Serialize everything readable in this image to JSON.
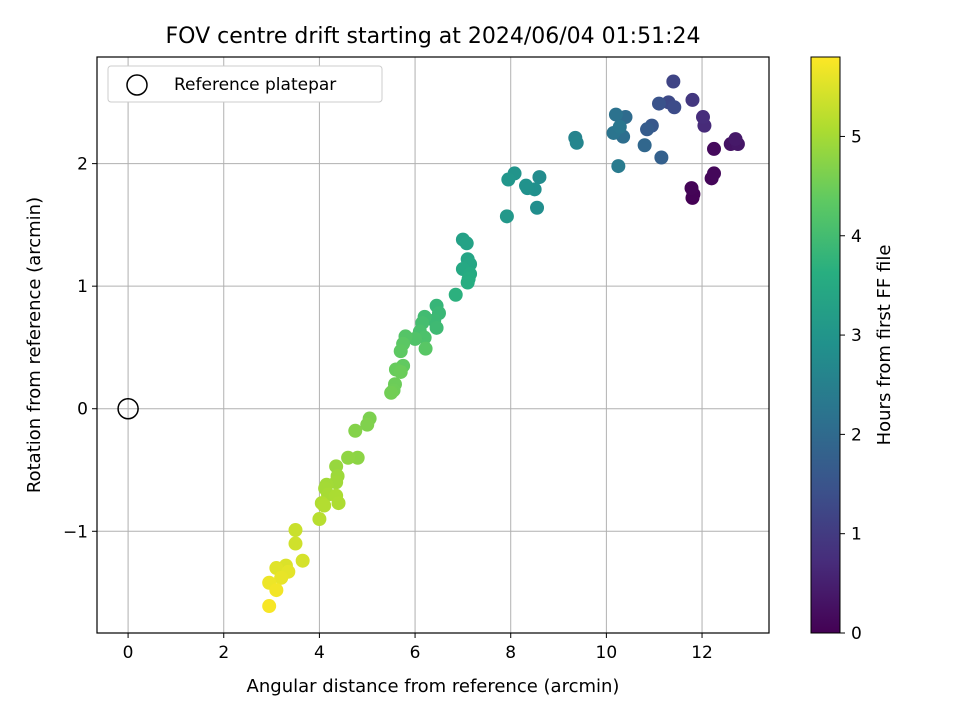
{
  "chart_data": {
    "type": "scatter",
    "title": "FOV centre drift starting at 2024/06/04 01:51:24",
    "xlabel": "Angular distance from reference (arcmin)",
    "ylabel": "Rotation from reference (arcmin)",
    "xlim": [
      -0.65,
      13.4
    ],
    "ylim": [
      -1.83,
      2.87
    ],
    "xticks": [
      0,
      2,
      4,
      6,
      8,
      10,
      12
    ],
    "yticks": [
      -1,
      0,
      1,
      2
    ],
    "xtick_labels": [
      "0",
      "2",
      "4",
      "6",
      "8",
      "10",
      "12"
    ],
    "ytick_labels": [
      "−1",
      "0",
      "1",
      "2"
    ],
    "grid": true,
    "legend": {
      "location": "upper left",
      "entries": [
        {
          "label": "Reference platepar",
          "marker": "open-circle"
        }
      ]
    },
    "colorbar": {
      "label": "Hours from first FF file",
      "range": [
        0,
        5.8
      ],
      "ticks": [
        0,
        1,
        2,
        3,
        4,
        5
      ],
      "tick_labels": [
        "0",
        "1",
        "2",
        "3",
        "4",
        "5"
      ],
      "colormap": "viridis"
    },
    "reference_point": {
      "x": 0,
      "y": 0
    },
    "points": [
      {
        "x": 11.8,
        "y": 1.72,
        "c": 0.0
      },
      {
        "x": 11.82,
        "y": 1.75,
        "c": 0.03
      },
      {
        "x": 11.78,
        "y": 1.8,
        "c": 0.06
      },
      {
        "x": 12.2,
        "y": 1.88,
        "c": 0.09
      },
      {
        "x": 12.25,
        "y": 1.92,
        "c": 0.12
      },
      {
        "x": 12.25,
        "y": 2.12,
        "c": 0.15
      },
      {
        "x": 12.6,
        "y": 2.16,
        "c": 0.3
      },
      {
        "x": 12.75,
        "y": 2.16,
        "c": 0.35
      },
      {
        "x": 12.7,
        "y": 2.2,
        "c": 0.4
      },
      {
        "x": 12.05,
        "y": 2.31,
        "c": 0.7
      },
      {
        "x": 12.02,
        "y": 2.38,
        "c": 0.75
      },
      {
        "x": 11.8,
        "y": 2.52,
        "c": 0.95
      },
      {
        "x": 11.4,
        "y": 2.67,
        "c": 1.2
      },
      {
        "x": 11.3,
        "y": 2.5,
        "c": 1.3
      },
      {
        "x": 11.42,
        "y": 2.46,
        "c": 1.35
      },
      {
        "x": 11.1,
        "y": 2.49,
        "c": 1.5
      },
      {
        "x": 10.95,
        "y": 2.31,
        "c": 1.6
      },
      {
        "x": 10.85,
        "y": 2.28,
        "c": 1.7
      },
      {
        "x": 11.15,
        "y": 2.05,
        "c": 1.8
      },
      {
        "x": 10.8,
        "y": 2.15,
        "c": 1.95
      },
      {
        "x": 10.4,
        "y": 2.38,
        "c": 2.05
      },
      {
        "x": 10.35,
        "y": 2.22,
        "c": 2.1
      },
      {
        "x": 10.2,
        "y": 2.4,
        "c": 2.2
      },
      {
        "x": 10.15,
        "y": 2.25,
        "c": 2.25
      },
      {
        "x": 10.28,
        "y": 2.3,
        "c": 2.3
      },
      {
        "x": 10.25,
        "y": 1.98,
        "c": 2.4
      },
      {
        "x": 9.35,
        "y": 2.21,
        "c": 2.6
      },
      {
        "x": 9.38,
        "y": 2.17,
        "c": 2.65
      },
      {
        "x": 8.6,
        "y": 1.89,
        "c": 2.8
      },
      {
        "x": 8.55,
        "y": 1.64,
        "c": 2.85
      },
      {
        "x": 8.5,
        "y": 1.79,
        "c": 2.9
      },
      {
        "x": 8.35,
        "y": 1.8,
        "c": 2.92
      },
      {
        "x": 8.32,
        "y": 1.82,
        "c": 2.95
      },
      {
        "x": 8.08,
        "y": 1.92,
        "c": 3.0
      },
      {
        "x": 7.95,
        "y": 1.87,
        "c": 3.05
      },
      {
        "x": 7.92,
        "y": 1.57,
        "c": 3.1
      },
      {
        "x": 7.0,
        "y": 1.38,
        "c": 3.3
      },
      {
        "x": 7.08,
        "y": 1.35,
        "c": 3.35
      },
      {
        "x": 7.1,
        "y": 1.22,
        "c": 3.4
      },
      {
        "x": 7.15,
        "y": 1.18,
        "c": 3.45
      },
      {
        "x": 7.0,
        "y": 1.14,
        "c": 3.5
      },
      {
        "x": 7.15,
        "y": 1.1,
        "c": 3.55
      },
      {
        "x": 7.12,
        "y": 1.06,
        "c": 3.6
      },
      {
        "x": 7.1,
        "y": 1.03,
        "c": 3.62
      },
      {
        "x": 6.85,
        "y": 0.93,
        "c": 3.7
      },
      {
        "x": 6.45,
        "y": 0.84,
        "c": 3.85
      },
      {
        "x": 6.5,
        "y": 0.78,
        "c": 3.9
      },
      {
        "x": 6.4,
        "y": 0.72,
        "c": 3.93
      },
      {
        "x": 6.45,
        "y": 0.66,
        "c": 3.96
      },
      {
        "x": 6.2,
        "y": 0.75,
        "c": 4.0
      },
      {
        "x": 6.15,
        "y": 0.7,
        "c": 4.05
      },
      {
        "x": 6.1,
        "y": 0.63,
        "c": 4.1
      },
      {
        "x": 6.2,
        "y": 0.58,
        "c": 4.15
      },
      {
        "x": 6.0,
        "y": 0.57,
        "c": 4.2
      },
      {
        "x": 5.8,
        "y": 0.59,
        "c": 4.25
      },
      {
        "x": 6.22,
        "y": 0.49,
        "c": 4.3
      },
      {
        "x": 5.75,
        "y": 0.53,
        "c": 4.33
      },
      {
        "x": 5.7,
        "y": 0.47,
        "c": 4.36
      },
      {
        "x": 5.75,
        "y": 0.35,
        "c": 4.4
      },
      {
        "x": 5.6,
        "y": 0.32,
        "c": 4.45
      },
      {
        "x": 5.7,
        "y": 0.3,
        "c": 4.48
      },
      {
        "x": 5.58,
        "y": 0.2,
        "c": 4.5
      },
      {
        "x": 5.55,
        "y": 0.15,
        "c": 4.52
      },
      {
        "x": 5.5,
        "y": 0.13,
        "c": 4.55
      },
      {
        "x": 5.05,
        "y": -0.08,
        "c": 4.65
      },
      {
        "x": 5.0,
        "y": -0.13,
        "c": 4.68
      },
      {
        "x": 4.75,
        "y": -0.18,
        "c": 4.72
      },
      {
        "x": 4.8,
        "y": -0.4,
        "c": 4.8
      },
      {
        "x": 4.6,
        "y": -0.4,
        "c": 4.82
      },
      {
        "x": 4.35,
        "y": -0.47,
        "c": 4.9
      },
      {
        "x": 4.38,
        "y": -0.55,
        "c": 4.95
      },
      {
        "x": 4.35,
        "y": -0.6,
        "c": 4.98
      },
      {
        "x": 4.15,
        "y": -0.62,
        "c": 5.0
      },
      {
        "x": 4.12,
        "y": -0.65,
        "c": 5.02
      },
      {
        "x": 4.18,
        "y": -0.7,
        "c": 5.05
      },
      {
        "x": 4.35,
        "y": -0.71,
        "c": 5.08
      },
      {
        "x": 4.4,
        "y": -0.77,
        "c": 5.1
      },
      {
        "x": 4.05,
        "y": -0.77,
        "c": 5.13
      },
      {
        "x": 4.1,
        "y": -0.79,
        "c": 5.15
      },
      {
        "x": 4.0,
        "y": -0.9,
        "c": 5.2
      },
      {
        "x": 3.5,
        "y": -0.99,
        "c": 5.35
      },
      {
        "x": 3.5,
        "y": -1.1,
        "c": 5.4
      },
      {
        "x": 3.65,
        "y": -1.24,
        "c": 5.45
      },
      {
        "x": 3.3,
        "y": -1.28,
        "c": 5.5
      },
      {
        "x": 3.1,
        "y": -1.3,
        "c": 5.55
      },
      {
        "x": 3.35,
        "y": -1.33,
        "c": 5.58
      },
      {
        "x": 3.2,
        "y": -1.38,
        "c": 5.62
      },
      {
        "x": 2.95,
        "y": -1.42,
        "c": 5.66
      },
      {
        "x": 3.1,
        "y": -1.48,
        "c": 5.7
      },
      {
        "x": 2.95,
        "y": -1.61,
        "c": 5.75
      }
    ]
  }
}
